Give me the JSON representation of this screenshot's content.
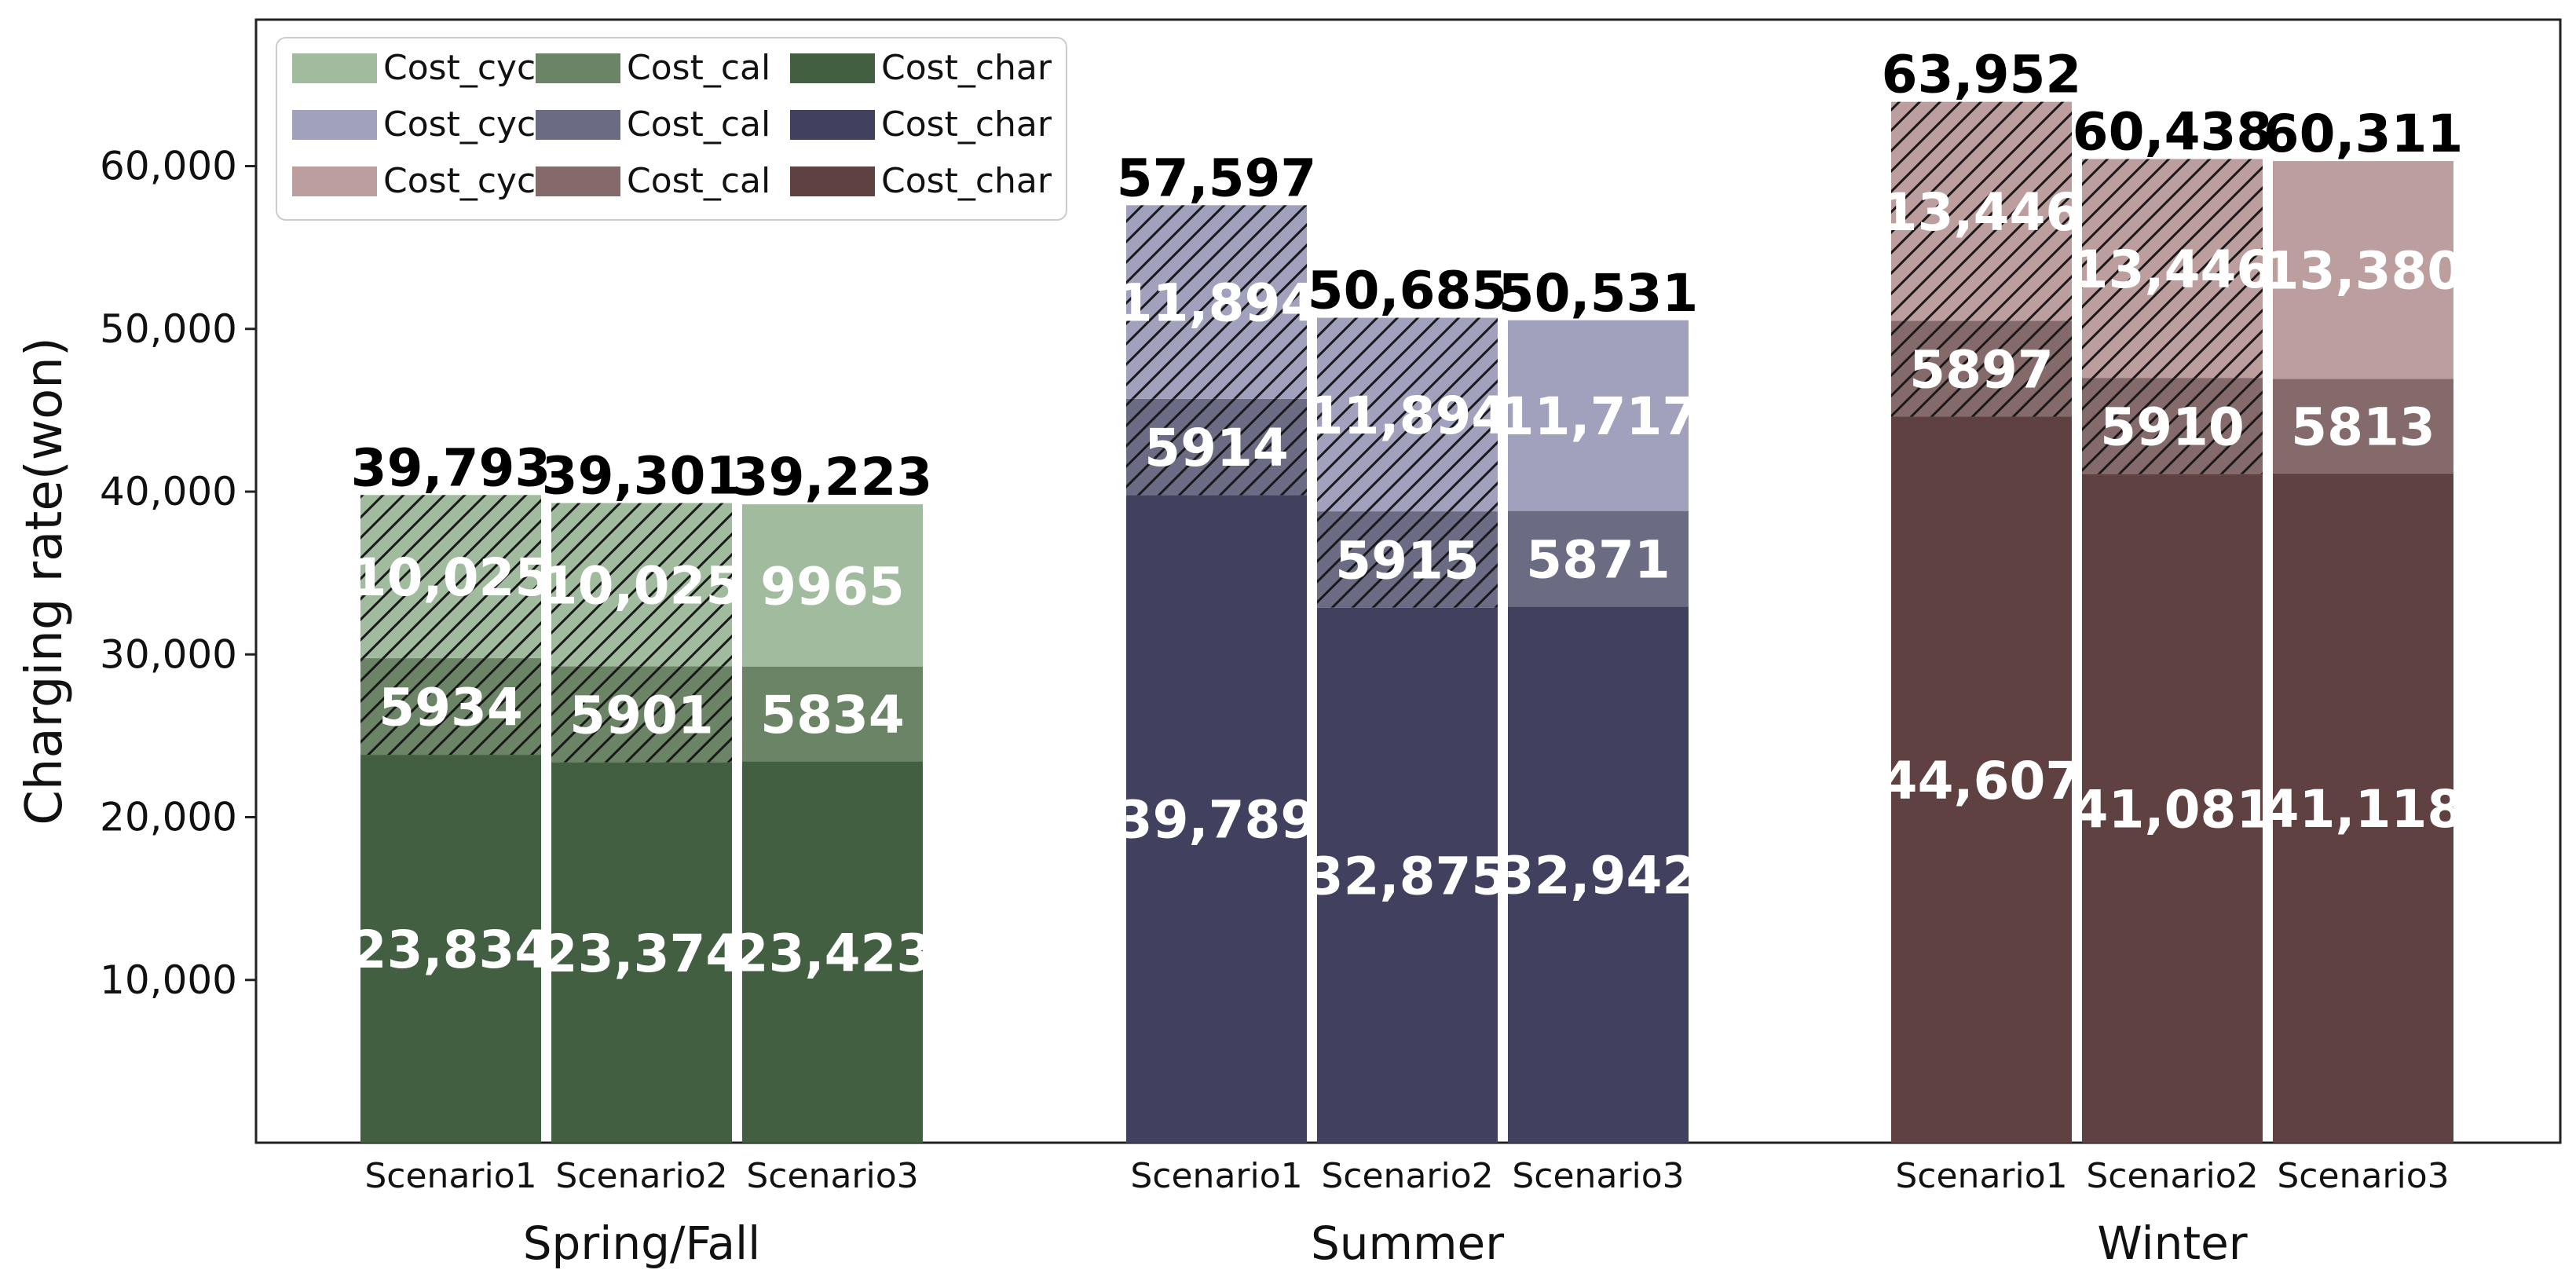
{
  "chart_data": {
    "type": "bar",
    "stacked": true,
    "ylabel": "Charging rate(won)",
    "ylim": [
      0,
      69000
    ],
    "yticks": [
      10000,
      20000,
      30000,
      40000,
      50000,
      60000
    ],
    "ytick_labels": [
      "10,000",
      "20,000",
      "30,000",
      "40,000",
      "50,000",
      "60,000"
    ],
    "legend_position": "top-left",
    "legend": [
      [
        "Cost_cyc",
        "Cost_cal",
        "Cost_char"
      ],
      [
        "Cost_cyc",
        "Cost_cal",
        "Cost_char"
      ],
      [
        "Cost_cyc",
        "Cost_cal",
        "Cost_char"
      ]
    ],
    "groups": [
      {
        "name": "Spring/Fall",
        "colors": {
          "char": "#435f41",
          "cal": "#6b8466",
          "cyc": "#a1bb9e"
        },
        "bars": [
          {
            "category": "Scenario1",
            "char": 23834,
            "cal": 5934,
            "cyc": 10025,
            "total": 39793,
            "hatched": true,
            "labels": {
              "char": "23,834",
              "cal": "5934",
              "cyc": "10,025",
              "total": "39,793"
            }
          },
          {
            "category": "Scenario2",
            "char": 23374,
            "cal": 5901,
            "cyc": 10025,
            "total": 39301,
            "hatched": true,
            "labels": {
              "char": "23,374",
              "cal": "5901",
              "cyc": "10,025",
              "total": "39,301"
            }
          },
          {
            "category": "Scenario3",
            "char": 23423,
            "cal": 5834,
            "cyc": 9965,
            "total": 39223,
            "hatched": false,
            "labels": {
              "char": "23,423",
              "cal": "5834",
              "cyc": "9965",
              "total": "39,223"
            }
          }
        ]
      },
      {
        "name": "Summer",
        "colors": {
          "char": "#41415f",
          "cal": "#6c6b84",
          "cyc": "#a2a1bd"
        },
        "bars": [
          {
            "category": "Scenario1",
            "char": 39789,
            "cal": 5914,
            "cyc": 11894,
            "total": 57597,
            "hatched": true,
            "labels": {
              "char": "39,789",
              "cal": "5914",
              "cyc": "11,894",
              "total": "57,597"
            }
          },
          {
            "category": "Scenario2",
            "char": 32875,
            "cal": 5915,
            "cyc": 11894,
            "total": 50685,
            "hatched": true,
            "labels": {
              "char": "32,875",
              "cal": "5915",
              "cyc": "11,894",
              "total": "50,685"
            }
          },
          {
            "category": "Scenario3",
            "char": 32942,
            "cal": 5871,
            "cyc": 11717,
            "total": 50531,
            "hatched": false,
            "labels": {
              "char": "32,942",
              "cal": "5871",
              "cyc": "11,717",
              "total": "50,531"
            }
          }
        ]
      },
      {
        "name": "Winter",
        "colors": {
          "char": "#5f4141",
          "cal": "#846a6b",
          "cyc": "#bd9e9f"
        },
        "bars": [
          {
            "category": "Scenario1",
            "char": 44607,
            "cal": 5897,
            "cyc": 13446,
            "total": 63952,
            "hatched": true,
            "labels": {
              "char": "44,607",
              "cal": "5897",
              "cyc": "13,446",
              "total": "63,952"
            }
          },
          {
            "category": "Scenario2",
            "char": 41081,
            "cal": 5910,
            "cyc": 13446,
            "total": 60438,
            "hatched": true,
            "labels": {
              "char": "41,081",
              "cal": "5910",
              "cyc": "13,446",
              "total": "60,438"
            }
          },
          {
            "category": "Scenario3",
            "char": 41118,
            "cal": 5813,
            "cyc": 13380,
            "total": 60311,
            "hatched": false,
            "labels": {
              "char": "41,118",
              "cal": "5813",
              "cyc": "13,380",
              "total": "60,311"
            }
          }
        ]
      }
    ]
  }
}
